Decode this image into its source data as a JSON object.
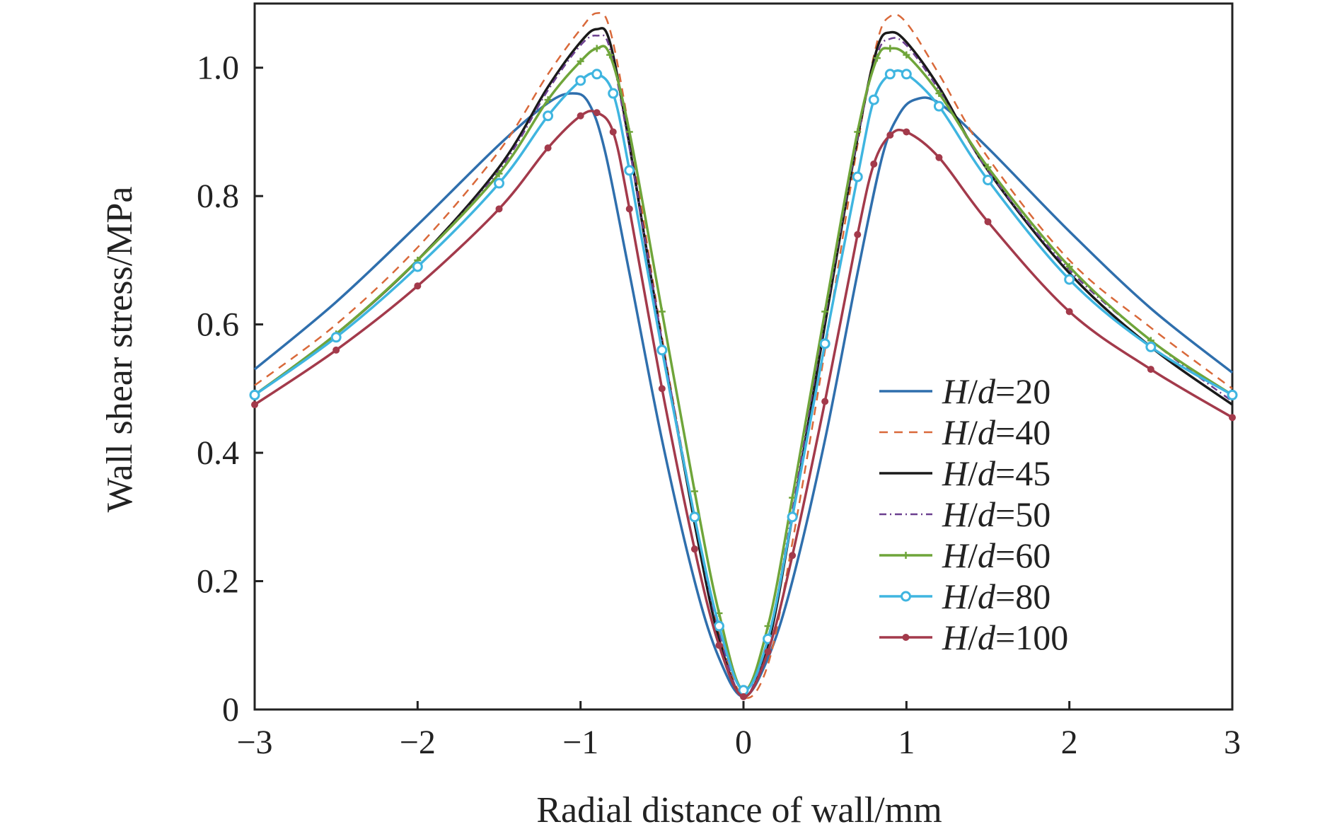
{
  "chart_data": {
    "type": "line",
    "title": "",
    "xlabel": "Radial distance of wall/mm",
    "ylabel": "Wall shear stress/MPa",
    "xlim": [
      -3,
      3
    ],
    "ylim": [
      0,
      1.1
    ],
    "x_ticks": [
      -3,
      -2,
      -1,
      0,
      1,
      2,
      3
    ],
    "x_tick_labels": [
      "−3",
      "−2",
      "−1",
      "0",
      "1",
      "2",
      "3"
    ],
    "y_ticks": [
      0,
      0.2,
      0.4,
      0.6,
      0.8,
      1.0
    ],
    "y_tick_labels": [
      "0",
      "0.2",
      "0.4",
      "0.6",
      "0.8",
      "1.0"
    ],
    "grid": false,
    "legend_position": "center-right",
    "series": [
      {
        "name": "H/d=20",
        "color": "#2f6fad",
        "dash": "",
        "marker": "none",
        "points": [
          [
            -3,
            0.53
          ],
          [
            -2.5,
            0.635
          ],
          [
            -2,
            0.755
          ],
          [
            -1.5,
            0.88
          ],
          [
            -1.2,
            0.945
          ],
          [
            -1.05,
            0.96
          ],
          [
            -0.95,
            0.945
          ],
          [
            -0.85,
            0.87
          ],
          [
            -0.7,
            0.68
          ],
          [
            -0.5,
            0.42
          ],
          [
            -0.3,
            0.2
          ],
          [
            -0.15,
            0.08
          ],
          [
            0,
            0.02
          ],
          [
            0.15,
            0.08
          ],
          [
            0.3,
            0.2
          ],
          [
            0.5,
            0.42
          ],
          [
            0.7,
            0.68
          ],
          [
            0.85,
            0.86
          ],
          [
            0.95,
            0.925
          ],
          [
            1.05,
            0.95
          ],
          [
            1.2,
            0.945
          ],
          [
            1.5,
            0.875
          ],
          [
            2,
            0.745
          ],
          [
            2.5,
            0.625
          ],
          [
            3,
            0.525
          ]
        ]
      },
      {
        "name": "H/d=40",
        "color": "#d9693a",
        "dash": "12,9",
        "marker": "none",
        "points": [
          [
            -3,
            0.505
          ],
          [
            -2.5,
            0.6
          ],
          [
            -2,
            0.72
          ],
          [
            -1.5,
            0.87
          ],
          [
            -1.2,
            0.99
          ],
          [
            -1.0,
            1.06
          ],
          [
            -0.9,
            1.085
          ],
          [
            -0.82,
            1.06
          ],
          [
            -0.7,
            0.9
          ],
          [
            -0.5,
            0.58
          ],
          [
            -0.3,
            0.3
          ],
          [
            -0.15,
            0.12
          ],
          [
            0,
            0.02
          ],
          [
            0.15,
            0.07
          ],
          [
            0.3,
            0.26
          ],
          [
            0.5,
            0.56
          ],
          [
            0.7,
            0.88
          ],
          [
            0.82,
            1.04
          ],
          [
            0.9,
            1.08
          ],
          [
            1.0,
            1.07
          ],
          [
            1.2,
            0.99
          ],
          [
            1.5,
            0.86
          ],
          [
            2,
            0.7
          ],
          [
            2.5,
            0.595
          ],
          [
            3,
            0.5
          ]
        ]
      },
      {
        "name": "H/d=45",
        "color": "#1a1a1a",
        "dash": "",
        "marker": "none",
        "points": [
          [
            -3,
            0.49
          ],
          [
            -2.5,
            0.585
          ],
          [
            -2,
            0.7
          ],
          [
            -1.5,
            0.845
          ],
          [
            -1.2,
            0.97
          ],
          [
            -1.0,
            1.04
          ],
          [
            -0.9,
            1.06
          ],
          [
            -0.82,
            1.04
          ],
          [
            -0.7,
            0.88
          ],
          [
            -0.5,
            0.57
          ],
          [
            -0.3,
            0.29
          ],
          [
            -0.15,
            0.11
          ],
          [
            0,
            0.02
          ],
          [
            0.15,
            0.1
          ],
          [
            0.3,
            0.3
          ],
          [
            0.5,
            0.6
          ],
          [
            0.7,
            0.89
          ],
          [
            0.82,
            1.03
          ],
          [
            0.9,
            1.055
          ],
          [
            1.0,
            1.04
          ],
          [
            1.2,
            0.97
          ],
          [
            1.5,
            0.84
          ],
          [
            2,
            0.68
          ],
          [
            2.5,
            0.565
          ],
          [
            3,
            0.475
          ]
        ]
      },
      {
        "name": "H/d=50",
        "color": "#6b3f8f",
        "dash": "10,5,2,5",
        "marker": "none",
        "points": [
          [
            -3,
            0.49
          ],
          [
            -2.5,
            0.585
          ],
          [
            -2,
            0.7
          ],
          [
            -1.5,
            0.84
          ],
          [
            -1.2,
            0.965
          ],
          [
            -1.0,
            1.035
          ],
          [
            -0.9,
            1.05
          ],
          [
            -0.82,
            1.03
          ],
          [
            -0.7,
            0.875
          ],
          [
            -0.5,
            0.575
          ],
          [
            -0.3,
            0.3
          ],
          [
            -0.15,
            0.12
          ],
          [
            0,
            0.02
          ],
          [
            0.15,
            0.11
          ],
          [
            0.3,
            0.31
          ],
          [
            0.5,
            0.61
          ],
          [
            0.7,
            0.89
          ],
          [
            0.82,
            1.02
          ],
          [
            0.9,
            1.045
          ],
          [
            1.0,
            1.035
          ],
          [
            1.2,
            0.965
          ],
          [
            1.5,
            0.84
          ],
          [
            2,
            0.685
          ],
          [
            2.5,
            0.575
          ],
          [
            3,
            0.48
          ]
        ]
      },
      {
        "name": "H/d=60",
        "color": "#6fa53a",
        "dash": "",
        "marker": "plus",
        "points": [
          [
            -3,
            0.49
          ],
          [
            -2.5,
            0.585
          ],
          [
            -2,
            0.7
          ],
          [
            -1.5,
            0.835
          ],
          [
            -1.2,
            0.95
          ],
          [
            -1.0,
            1.01
          ],
          [
            -0.9,
            1.03
          ],
          [
            -0.82,
            1.02
          ],
          [
            -0.7,
            0.9
          ],
          [
            -0.5,
            0.62
          ],
          [
            -0.3,
            0.34
          ],
          [
            -0.15,
            0.15
          ],
          [
            0,
            0.03
          ],
          [
            0.15,
            0.13
          ],
          [
            0.3,
            0.33
          ],
          [
            0.5,
            0.62
          ],
          [
            0.7,
            0.9
          ],
          [
            0.82,
            1.015
          ],
          [
            0.9,
            1.03
          ],
          [
            1.0,
            1.02
          ],
          [
            1.2,
            0.96
          ],
          [
            1.5,
            0.845
          ],
          [
            2,
            0.69
          ],
          [
            2.5,
            0.575
          ],
          [
            3,
            0.49
          ]
        ]
      },
      {
        "name": "H/d=80",
        "color": "#3fb5e0",
        "dash": "",
        "marker": "circle",
        "points": [
          [
            -3,
            0.49
          ],
          [
            -2.5,
            0.58
          ],
          [
            -2,
            0.69
          ],
          [
            -1.5,
            0.82
          ],
          [
            -1.2,
            0.925
          ],
          [
            -1.0,
            0.98
          ],
          [
            -0.9,
            0.99
          ],
          [
            -0.8,
            0.96
          ],
          [
            -0.7,
            0.84
          ],
          [
            -0.5,
            0.56
          ],
          [
            -0.3,
            0.3
          ],
          [
            -0.15,
            0.13
          ],
          [
            0,
            0.03
          ],
          [
            0.15,
            0.11
          ],
          [
            0.3,
            0.3
          ],
          [
            0.5,
            0.57
          ],
          [
            0.7,
            0.83
          ],
          [
            0.8,
            0.95
          ],
          [
            0.9,
            0.99
          ],
          [
            1.0,
            0.99
          ],
          [
            1.2,
            0.94
          ],
          [
            1.5,
            0.825
          ],
          [
            2,
            0.67
          ],
          [
            2.5,
            0.565
          ],
          [
            3,
            0.49
          ]
        ]
      },
      {
        "name": "H/d=100",
        "color": "#a33a4b",
        "dash": "",
        "marker": "dot",
        "points": [
          [
            -3,
            0.475
          ],
          [
            -2.5,
            0.56
          ],
          [
            -2,
            0.66
          ],
          [
            -1.5,
            0.78
          ],
          [
            -1.2,
            0.875
          ],
          [
            -1.0,
            0.925
          ],
          [
            -0.9,
            0.93
          ],
          [
            -0.8,
            0.9
          ],
          [
            -0.7,
            0.78
          ],
          [
            -0.5,
            0.5
          ],
          [
            -0.3,
            0.25
          ],
          [
            -0.15,
            0.1
          ],
          [
            0,
            0.02
          ],
          [
            0.15,
            0.09
          ],
          [
            0.3,
            0.24
          ],
          [
            0.5,
            0.48
          ],
          [
            0.7,
            0.74
          ],
          [
            0.8,
            0.85
          ],
          [
            0.9,
            0.895
          ],
          [
            1.0,
            0.9
          ],
          [
            1.2,
            0.86
          ],
          [
            1.5,
            0.76
          ],
          [
            2,
            0.62
          ],
          [
            2.5,
            0.53
          ],
          [
            3,
            0.455
          ]
        ]
      }
    ]
  }
}
